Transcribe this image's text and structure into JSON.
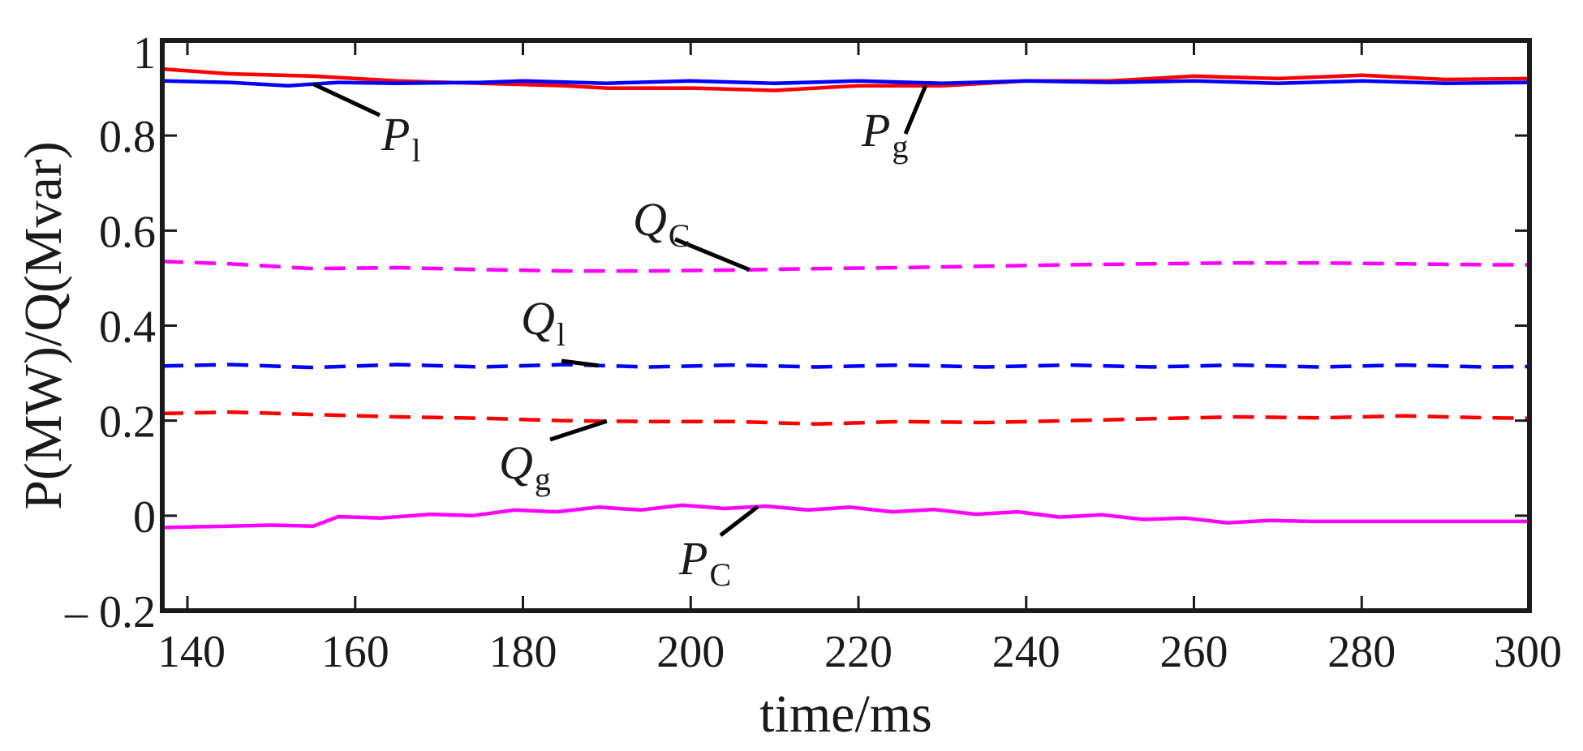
{
  "chart_data": {
    "type": "line",
    "title": "",
    "xlabel": "time/ms",
    "ylabel": "P(MW)/Q(Mvar)",
    "xlim": [
      137,
      300
    ],
    "ylim": [
      -0.2,
      1.0
    ],
    "grid": false,
    "x_ticks": [
      140,
      160,
      180,
      200,
      220,
      240,
      260,
      280,
      300
    ],
    "x_tick_labels": [
      "140",
      "160",
      "180",
      "200",
      "220",
      "240",
      "260",
      "280",
      "300"
    ],
    "y_ticks": [
      -0.2,
      0,
      0.2,
      0.4,
      0.6,
      0.8,
      1.0
    ],
    "y_tick_labels": [
      "– 0.2",
      "0",
      "0.2",
      "0.4",
      "0.6",
      "0.8",
      "1"
    ],
    "series": [
      {
        "name": "P_g",
        "label_main": "P",
        "label_sub": "g",
        "color": "#ff0000",
        "dash": "solid",
        "x": [
          137,
          145,
          155,
          165,
          175,
          185,
          190,
          200,
          210,
          220,
          230,
          240,
          250,
          260,
          270,
          280,
          290,
          300
        ],
        "y": [
          0.94,
          0.93,
          0.925,
          0.915,
          0.91,
          0.905,
          0.9,
          0.9,
          0.895,
          0.905,
          0.905,
          0.915,
          0.915,
          0.925,
          0.92,
          0.927,
          0.918,
          0.92
        ]
      },
      {
        "name": "P_l",
        "label_main": "P",
        "label_sub": "l",
        "color": "#0000ff",
        "dash": "solid",
        "x": [
          137,
          145,
          152,
          158,
          165,
          175,
          180,
          190,
          200,
          210,
          220,
          230,
          240,
          250,
          260,
          270,
          280,
          290,
          300
        ],
        "y": [
          0.915,
          0.912,
          0.905,
          0.912,
          0.91,
          0.912,
          0.915,
          0.91,
          0.915,
          0.91,
          0.915,
          0.91,
          0.915,
          0.912,
          0.915,
          0.91,
          0.915,
          0.91,
          0.912
        ]
      },
      {
        "name": "Q_C",
        "label_main": "Q",
        "label_sub": "C",
        "color": "#ff00ff",
        "dash": "dashed",
        "x": [
          137,
          145,
          155,
          165,
          175,
          185,
          195,
          205,
          215,
          225,
          235,
          245,
          255,
          265,
          275,
          285,
          295,
          300
        ],
        "y": [
          0.535,
          0.53,
          0.52,
          0.522,
          0.518,
          0.515,
          0.515,
          0.517,
          0.52,
          0.522,
          0.525,
          0.528,
          0.53,
          0.532,
          0.532,
          0.53,
          0.528,
          0.528
        ]
      },
      {
        "name": "Q_l",
        "label_main": "Q",
        "label_sub": "l",
        "color": "#0000ff",
        "dash": "dashed",
        "x": [
          137,
          145,
          155,
          165,
          175,
          185,
          195,
          205,
          215,
          225,
          235,
          245,
          255,
          265,
          275,
          285,
          295,
          300
        ],
        "y": [
          0.315,
          0.318,
          0.312,
          0.318,
          0.313,
          0.318,
          0.313,
          0.317,
          0.313,
          0.317,
          0.313,
          0.317,
          0.313,
          0.317,
          0.313,
          0.317,
          0.313,
          0.314
        ]
      },
      {
        "name": "Q_g",
        "label_main": "Q",
        "label_sub": "g",
        "color": "#ff0000",
        "dash": "dashed",
        "x": [
          137,
          145,
          155,
          165,
          175,
          185,
          195,
          205,
          215,
          225,
          235,
          245,
          255,
          265,
          275,
          285,
          295,
          300
        ],
        "y": [
          0.215,
          0.218,
          0.213,
          0.208,
          0.205,
          0.2,
          0.198,
          0.198,
          0.193,
          0.198,
          0.196,
          0.2,
          0.204,
          0.208,
          0.206,
          0.21,
          0.206,
          0.205
        ]
      },
      {
        "name": "P_C",
        "label_main": "P",
        "label_sub": "C",
        "color": "#ff00ff",
        "dash": "solid",
        "x": [
          137,
          145,
          150,
          155,
          158,
          163,
          169,
          174,
          179,
          184,
          189,
          194,
          199,
          204,
          209,
          214,
          219,
          224,
          229,
          234,
          239,
          244,
          249,
          254,
          259,
          264,
          269,
          274,
          280,
          290,
          300
        ],
        "y": [
          -0.025,
          -0.022,
          -0.02,
          -0.022,
          -0.002,
          -0.005,
          0.003,
          0.0,
          0.012,
          0.008,
          0.018,
          0.012,
          0.022,
          0.015,
          0.02,
          0.012,
          0.018,
          0.008,
          0.013,
          0.003,
          0.008,
          -0.003,
          0.002,
          -0.008,
          -0.005,
          -0.015,
          -0.01,
          -0.012,
          -0.012,
          -0.012,
          -0.012
        ]
      }
    ],
    "annotations": [
      {
        "series": "P_l",
        "main": "P",
        "sub": "l"
      },
      {
        "series": "P_g",
        "main": "P",
        "sub": "g"
      },
      {
        "series": "Q_C",
        "main": "Q",
        "sub": "C"
      },
      {
        "series": "Q_l",
        "main": "Q",
        "sub": "l"
      },
      {
        "series": "Q_g",
        "main": "Q",
        "sub": "g"
      },
      {
        "series": "P_C",
        "main": "P",
        "sub": "C"
      }
    ]
  }
}
